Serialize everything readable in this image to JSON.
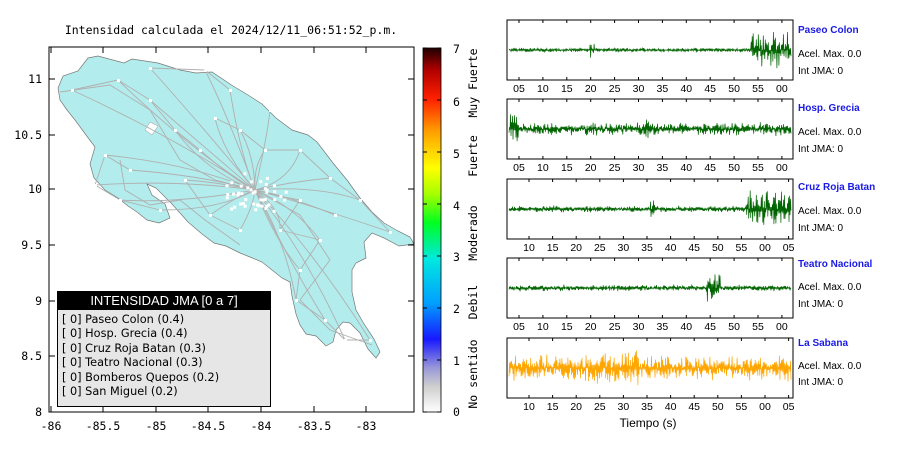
{
  "map": {
    "title": "Intensidad calculada el 2024/12/11_06:51:52_p.m.",
    "x_ticks": [
      "-86",
      "-85.5",
      "-85",
      "-84.5",
      "-84",
      "-83.5",
      "-83"
    ],
    "y_ticks": [
      "11",
      "10.5",
      "10",
      "9.5",
      "9",
      "8.5",
      "8"
    ],
    "land_color": "#b3ecec",
    "road_color": "#b0b0b0"
  },
  "colorbar": {
    "ticks": [
      "7",
      "6",
      "5",
      "4",
      "3",
      "2",
      "1",
      "0"
    ],
    "category_labels": [
      "Muy Fuerte",
      "Fuerte",
      "Moderado",
      "Debil",
      "No sentido"
    ]
  },
  "legend": {
    "title": "INTENSIDAD JMA [0 a 7]",
    "rows": [
      "[ 0]  Paseo Colon (0.4)",
      "[ 0]  Hosp. Grecia (0.4)",
      "[ 0]  Cruz Roja Batan (0.3)",
      "[ 0]  Teatro Nacional (0.3)",
      "[ 0]  Bomberos Quepos (0.2)",
      "[ 0]  San Miguel (0.2)"
    ]
  },
  "stations": [
    {
      "name": "Paseo Colon",
      "accel": "Acel. Max. 0.0",
      "int": "Int JMA: 0",
      "color": "#006400",
      "ticks": [
        "05",
        "10",
        "15",
        "20",
        "25",
        "30",
        "35",
        "40",
        "45",
        "50",
        "55",
        "00"
      ]
    },
    {
      "name": "Hosp. Grecia",
      "accel": "Acel. Max. 0.0",
      "int": "Int JMA: 0",
      "color": "#006400",
      "ticks": [
        "05",
        "10",
        "15",
        "20",
        "25",
        "30",
        "35",
        "40",
        "45",
        "50",
        "55",
        "00"
      ]
    },
    {
      "name": "Cruz Roja Batan",
      "accel": "Acel. Max. 0.0",
      "int": "Int JMA: 0",
      "color": "#006400",
      "ticks": [
        "10",
        "15",
        "20",
        "25",
        "30",
        "35",
        "40",
        "45",
        "50",
        "55",
        "00",
        "05"
      ]
    },
    {
      "name": "Teatro Nacional",
      "accel": "Acel. Max. 0.0",
      "int": "Int JMA: 0",
      "color": "#006400",
      "ticks": [
        "05",
        "10",
        "15",
        "20",
        "25",
        "30",
        "35",
        "40",
        "45",
        "50",
        "55",
        "00"
      ]
    },
    {
      "name": "La Sabana",
      "accel": "Acel. Max. 0.0",
      "int": "Int JMA: 0",
      "color": "#ffa500",
      "ticks": [
        "10",
        "15",
        "20",
        "25",
        "30",
        "35",
        "40",
        "45",
        "50",
        "55",
        "00",
        "05"
      ]
    }
  ],
  "xlabel": "Tiempo (s)",
  "chart_data": [
    {
      "type": "heatmap",
      "title": "Intensidad calculada el 2024/12/11_06:51:52_p.m.",
      "xlim": [
        -86,
        -82.6
      ],
      "ylim": [
        8,
        11.35
      ],
      "colorbar_range": [
        0,
        7
      ],
      "legend_placement": "bottom-left"
    },
    {
      "type": "line",
      "series": [
        {
          "name": "Paseo Colon",
          "values": [
            0.0
          ]
        },
        {
          "name": "Hosp. Grecia",
          "values": [
            0.0
          ]
        },
        {
          "name": "Cruz Roja Batan",
          "values": [
            0.0
          ]
        },
        {
          "name": "Teatro Nacional",
          "values": [
            0.0
          ]
        },
        {
          "name": "La Sabana",
          "values": [
            0.0
          ]
        }
      ],
      "xlabel": "Tiempo (s)"
    }
  ]
}
